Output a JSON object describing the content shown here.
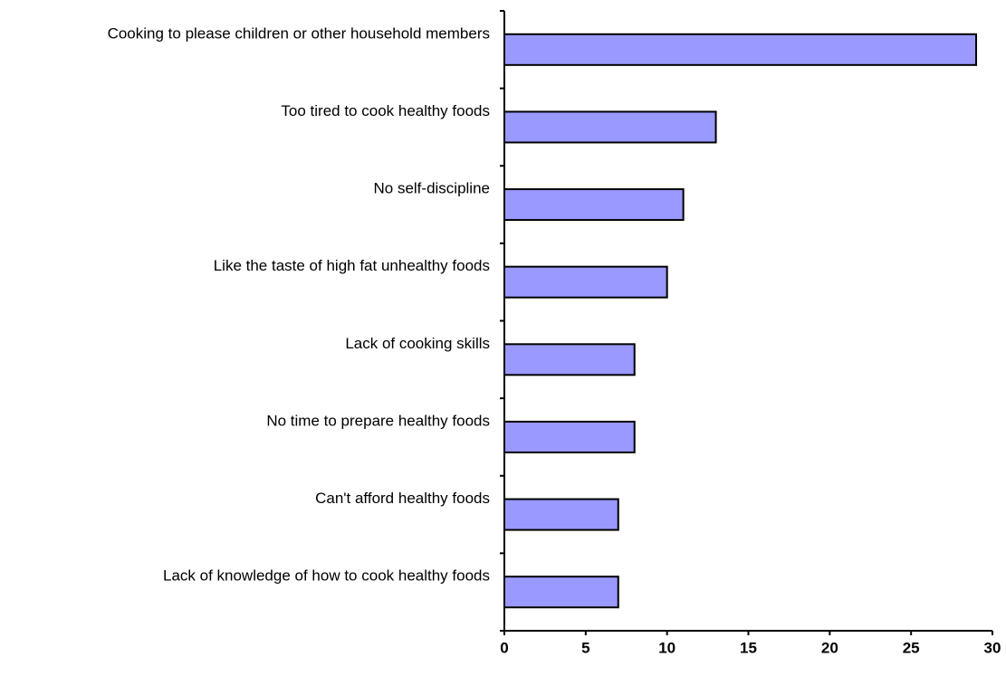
{
  "chart_data": {
    "type": "bar",
    "orientation": "horizontal",
    "categories": [
      "Cooking to please children or other household members",
      "Too tired to cook healthy foods",
      "No self-discipline",
      "Like the taste of high fat unhealthy foods",
      "Lack of cooking skills",
      "No time to prepare healthy foods",
      "Can't afford healthy foods",
      "Lack of knowledge of how to cook healthy foods"
    ],
    "values": [
      29,
      13,
      11,
      10,
      8,
      8,
      7,
      7
    ],
    "color": "#9999ff",
    "xlim": [
      0,
      30
    ],
    "xticks": [
      0,
      5,
      10,
      15,
      20,
      25,
      30
    ],
    "grid": false
  }
}
